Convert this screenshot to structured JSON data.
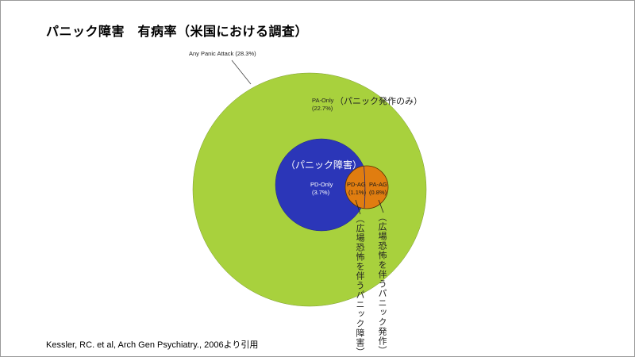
{
  "title": "パニック障害　有病率（米国における調査）",
  "citation": "Kessler, RC. et al, Arch Gen Psychiatry., 2006より引用",
  "colors": {
    "any_panic_attack": "#a8d13d",
    "pd_only": "#2b36b8",
    "agoraphobia": "#e07d10"
  },
  "labels": {
    "any_panic_attack": "Any Panic Attack (28.3%)",
    "pa_only_line1": "PA-Only",
    "pa_only_line2": "(22.7%)",
    "pa_only_jp": "（パニック発作のみ）",
    "pd_jp": "（パニック障害）",
    "pd_only_line1": "PD-Only",
    "pd_only_line2": "(3.7%)",
    "pd_ag_line1": "PD-AG",
    "pd_ag_line2": "(1.1%)",
    "pa_ag_line1": "PA-AG",
    "pa_ag_line2": "(0.8%)",
    "pd_ag_vertical": "（広場恐怖を伴うパニック障害）",
    "pa_ag_vertical": "（広場恐怖を伴うパニック発作）"
  }
}
